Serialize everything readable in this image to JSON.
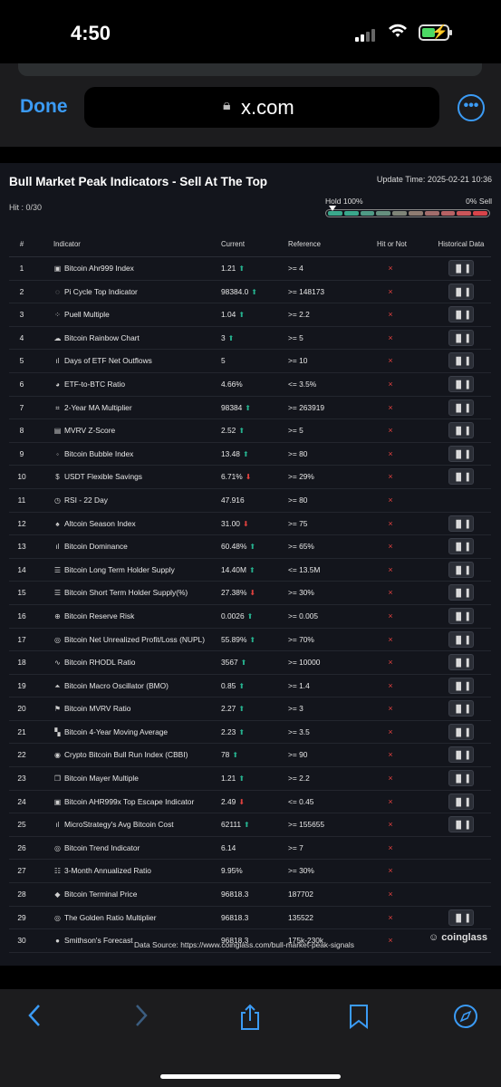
{
  "status": {
    "time": "4:50"
  },
  "browser": {
    "done_label": "Done",
    "url": "x.com",
    "lock_icon": "lock-icon",
    "more_icon": "ellipsis-icon"
  },
  "page": {
    "title": "Bull Market Peak Indicators - Sell At The Top",
    "hit": "Hit : 0/30",
    "update_time": "Update Time: 2025-02-21 10:36",
    "hold_label": "Hold 100%",
    "sell_label": "0% Sell",
    "gauge_colors": [
      "#3aa88c",
      "#3aa88c",
      "#4f9b86",
      "#66907f",
      "#7f8478",
      "#8f7c72",
      "#a26d6c",
      "#b86264",
      "#cb565a",
      "#d8444a"
    ],
    "progress": 0,
    "headers": {
      "num": "#",
      "indicator": "Indicator",
      "current": "Current",
      "reference": "Reference",
      "hit": "Hit or Not",
      "history": "Historical Data"
    },
    "rows": [
      {
        "n": "1",
        "icon": "▣",
        "name": "Bitcoin Ahr999 Index",
        "cur": "1.21",
        "trend": "up",
        "ref": ">= 4",
        "hist": true
      },
      {
        "n": "2",
        "icon": "◌",
        "name": "Pi Cycle Top Indicator",
        "cur": "98384.0",
        "trend": "up",
        "ref": ">= 148173",
        "hist": true
      },
      {
        "n": "3",
        "icon": "⁘",
        "name": "Puell Multiple",
        "cur": "1.04",
        "trend": "up",
        "ref": ">= 2.2",
        "hist": true
      },
      {
        "n": "4",
        "icon": "☁",
        "name": "Bitcoin Rainbow Chart",
        "cur": "3",
        "trend": "up",
        "ref": ">= 5",
        "hist": true
      },
      {
        "n": "5",
        "icon": "ıl",
        "name": "Days of ETF Net Outflows",
        "cur": "5",
        "trend": "",
        "ref": ">= 10",
        "hist": true
      },
      {
        "n": "6",
        "icon": "◕",
        "name": "ETF-to-BTC Ratio",
        "cur": "4.66%",
        "trend": "",
        "ref": "<= 3.5%",
        "hist": true
      },
      {
        "n": "7",
        "icon": "⌗",
        "name": "2-Year MA Multiplier",
        "cur": "98384",
        "trend": "up",
        "ref": ">= 263919",
        "hist": true
      },
      {
        "n": "8",
        "icon": "▤",
        "name": "MVRV Z-Score",
        "cur": "2.52",
        "trend": "up",
        "ref": ">= 5",
        "hist": true
      },
      {
        "n": "9",
        "icon": "◦",
        "name": "Bitcoin Bubble Index",
        "cur": "13.48",
        "trend": "up",
        "ref": ">= 80",
        "hist": true
      },
      {
        "n": "10",
        "icon": "$",
        "name": "USDT Flexible Savings",
        "cur": "6.71%",
        "trend": "down",
        "ref": ">= 29%",
        "hist": true
      },
      {
        "n": "11",
        "icon": "◷",
        "name": "RSI - 22 Day",
        "cur": "47.916",
        "trend": "",
        "ref": ">= 80",
        "hist": false
      },
      {
        "n": "12",
        "icon": "♠",
        "name": "Altcoin Season Index",
        "cur": "31.00",
        "trend": "down",
        "ref": ">= 75",
        "hist": true
      },
      {
        "n": "13",
        "icon": "ıl",
        "name": "Bitcoin Dominance",
        "cur": "60.48%",
        "trend": "up",
        "ref": ">= 65%",
        "hist": true
      },
      {
        "n": "14",
        "icon": "☰",
        "name": "Bitcoin Long Term Holder Supply",
        "cur": "14.40M",
        "trend": "up",
        "ref": "<= 13.5M",
        "hist": true
      },
      {
        "n": "15",
        "icon": "☰",
        "name": "Bitcoin Short Term Holder Supply(%)",
        "cur": "27.38%",
        "trend": "down",
        "ref": ">= 30%",
        "hist": true
      },
      {
        "n": "16",
        "icon": "⊕",
        "name": "Bitcoin Reserve Risk",
        "cur": "0.0026",
        "trend": "up",
        "ref": ">= 0.005",
        "hist": true
      },
      {
        "n": "17",
        "icon": "◎",
        "name": "Bitcoin Net Unrealized Profit/Loss (NUPL)",
        "cur": "55.89%",
        "trend": "up",
        "ref": ">= 70%",
        "hist": true
      },
      {
        "n": "18",
        "icon": "∿",
        "name": "Bitcoin RHODL Ratio",
        "cur": "3567",
        "trend": "up",
        "ref": ">= 10000",
        "hist": true
      },
      {
        "n": "19",
        "icon": "⏶",
        "name": "Bitcoin Macro Oscillator (BMO)",
        "cur": "0.85",
        "trend": "up",
        "ref": ">= 1.4",
        "hist": true
      },
      {
        "n": "20",
        "icon": "⚑",
        "name": "Bitcoin MVRV Ratio",
        "cur": "2.27",
        "trend": "up",
        "ref": ">= 3",
        "hist": true
      },
      {
        "n": "21",
        "icon": "▚",
        "name": "Bitcoin 4-Year Moving Average",
        "cur": "2.23",
        "trend": "up",
        "ref": ">= 3.5",
        "hist": true
      },
      {
        "n": "22",
        "icon": "◉",
        "name": "Crypto Bitcoin Bull Run Index (CBBI)",
        "cur": "78",
        "trend": "up",
        "ref": ">= 90",
        "hist": true
      },
      {
        "n": "23",
        "icon": "❐",
        "name": "Bitcoin Mayer Multiple",
        "cur": "1.21",
        "trend": "up",
        "ref": ">= 2.2",
        "hist": true
      },
      {
        "n": "24",
        "icon": "▣",
        "name": "Bitcoin AHR999x Top Escape Indicator",
        "cur": "2.49",
        "trend": "down",
        "ref": "<= 0.45",
        "hist": true
      },
      {
        "n": "25",
        "icon": "ıl",
        "name": "MicroStrategy's Avg Bitcoin Cost",
        "cur": "62111",
        "trend": "up",
        "ref": ">= 155655",
        "hist": true
      },
      {
        "n": "26",
        "icon": "◎",
        "name": "Bitcoin Trend Indicator",
        "cur": "6.14",
        "trend": "",
        "ref": ">= 7",
        "hist": false
      },
      {
        "n": "27",
        "icon": "☷",
        "name": "3-Month Annualized Ratio",
        "cur": "9.95%",
        "trend": "",
        "ref": ">= 30%",
        "hist": false
      },
      {
        "n": "28",
        "icon": "◆",
        "name": "Bitcoin Terminal Price",
        "cur": "96818.3",
        "trend": "",
        "ref": "187702",
        "hist": false
      },
      {
        "n": "29",
        "icon": "◎",
        "name": "The Golden Ratio Multiplier",
        "cur": "96818.3",
        "trend": "",
        "ref": "135522",
        "hist": true
      },
      {
        "n": "30",
        "icon": "●",
        "name": "Smithson's Forecast",
        "cur": "96818.3",
        "trend": "",
        "ref": "175k-230k",
        "hist": false
      }
    ],
    "hit_mark": "×",
    "source": "Data Source: https://www.coinglass.com/bull-market-peak-signals",
    "brand": "coinglass"
  },
  "toolbar": {
    "back_icon": "chevron-left-icon",
    "forward_icon": "chevron-right-icon",
    "share_icon": "share-icon",
    "bookmark_icon": "bookmark-icon",
    "compass_icon": "compass-icon"
  }
}
